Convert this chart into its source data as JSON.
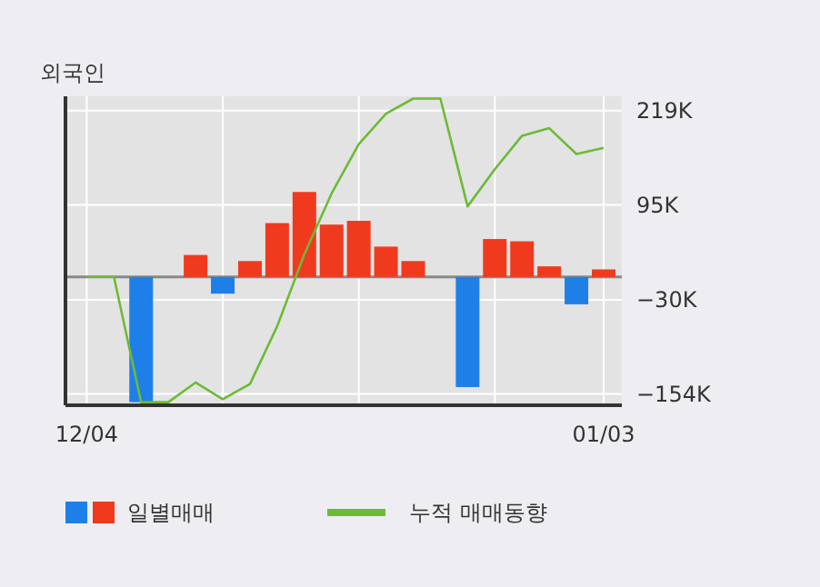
{
  "chart_data": {
    "type": "bar",
    "title": "외국인",
    "categories": [
      "12/04",
      null,
      null,
      null,
      null,
      null,
      null,
      null,
      null,
      null,
      null,
      null,
      null,
      null,
      null,
      null,
      null,
      null,
      null,
      "01/03"
    ],
    "series": [
      {
        "name": "일별매매",
        "colors": [
          "#f03a1e",
          "#f03a1e",
          "#1f7fe8",
          "#f03a1e",
          "#f03a1e",
          "#1f7fe8",
          "#f03a1e",
          "#f03a1e",
          "#f03a1e",
          "#f03a1e",
          "#f03a1e",
          "#f03a1e",
          "#f03a1e",
          "#f03a1e",
          "#1f7fe8",
          "#f03a1e",
          "#f03a1e",
          "#f03a1e",
          "#1f7fe8",
          "#f03a1e"
        ],
        "values": [
          0,
          0,
          -165,
          0,
          29,
          -22,
          21,
          71,
          112,
          69,
          74,
          40,
          21,
          0,
          -145,
          50,
          47,
          14,
          -36,
          10
        ]
      },
      {
        "type": "line",
        "name": "누적 매매동향",
        "color": "#6cbb35",
        "values": [
          0,
          0,
          -165,
          -165,
          -139,
          -161,
          -141,
          -65,
          30,
          110,
          175,
          215,
          235,
          235,
          93,
          142,
          186,
          196,
          162,
          170
        ]
      }
    ],
    "ylim": [
      -169,
      238
    ],
    "yticks": [
      {
        "value": 219,
        "label": "219K"
      },
      {
        "value": 95,
        "label": "95K"
      },
      {
        "value": -30,
        "label": "−30K"
      },
      {
        "value": -154,
        "label": "−154K"
      }
    ],
    "grid": true,
    "legend": "bottom"
  }
}
